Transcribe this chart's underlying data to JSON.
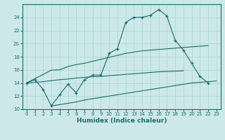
{
  "xlabel": "Humidex (Indice chaleur)",
  "bg_color": "#cce8e8",
  "line_color": "#1a6b6b",
  "grid_color": "#aad4d4",
  "x_ticks": [
    0,
    1,
    2,
    3,
    4,
    5,
    6,
    7,
    8,
    9,
    10,
    11,
    12,
    13,
    14,
    15,
    16,
    17,
    18,
    19,
    20,
    21,
    22,
    23
  ],
  "ylim": [
    10,
    26
  ],
  "xlim": [
    -0.5,
    23.5
  ],
  "yticks": [
    10,
    12,
    14,
    16,
    18,
    20,
    22,
    24
  ],
  "curve_main": [
    14.0,
    14.5,
    13.0,
    10.5,
    12.2,
    13.8,
    12.5,
    14.5,
    15.2,
    15.2,
    18.5,
    19.2,
    23.2,
    24.0,
    24.0,
    24.3,
    25.2,
    24.2,
    20.5,
    19.0,
    17.0,
    15.0,
    14.0,
    null
  ],
  "curve_upper": [
    14.0,
    14.65,
    15.3,
    15.95,
    16.0,
    16.5,
    16.8,
    17.0,
    17.3,
    17.6,
    17.9,
    18.2,
    18.5,
    18.7,
    18.9,
    19.0,
    19.1,
    19.2,
    19.3,
    19.4,
    19.5,
    19.6,
    19.7,
    null
  ],
  "curve_mid": [
    14.0,
    14.1,
    14.2,
    14.35,
    14.5,
    14.6,
    14.75,
    14.85,
    14.95,
    15.0,
    15.1,
    15.2,
    15.3,
    15.4,
    15.5,
    15.6,
    15.7,
    15.75,
    15.8,
    15.85,
    null,
    null,
    null,
    null
  ],
  "curve_lower": [
    null,
    null,
    null,
    10.5,
    10.7,
    10.9,
    11.1,
    11.4,
    11.6,
    11.8,
    12.0,
    12.2,
    12.4,
    12.6,
    12.8,
    13.0,
    13.2,
    13.4,
    13.6,
    13.8,
    14.0,
    14.1,
    14.2,
    14.3
  ]
}
